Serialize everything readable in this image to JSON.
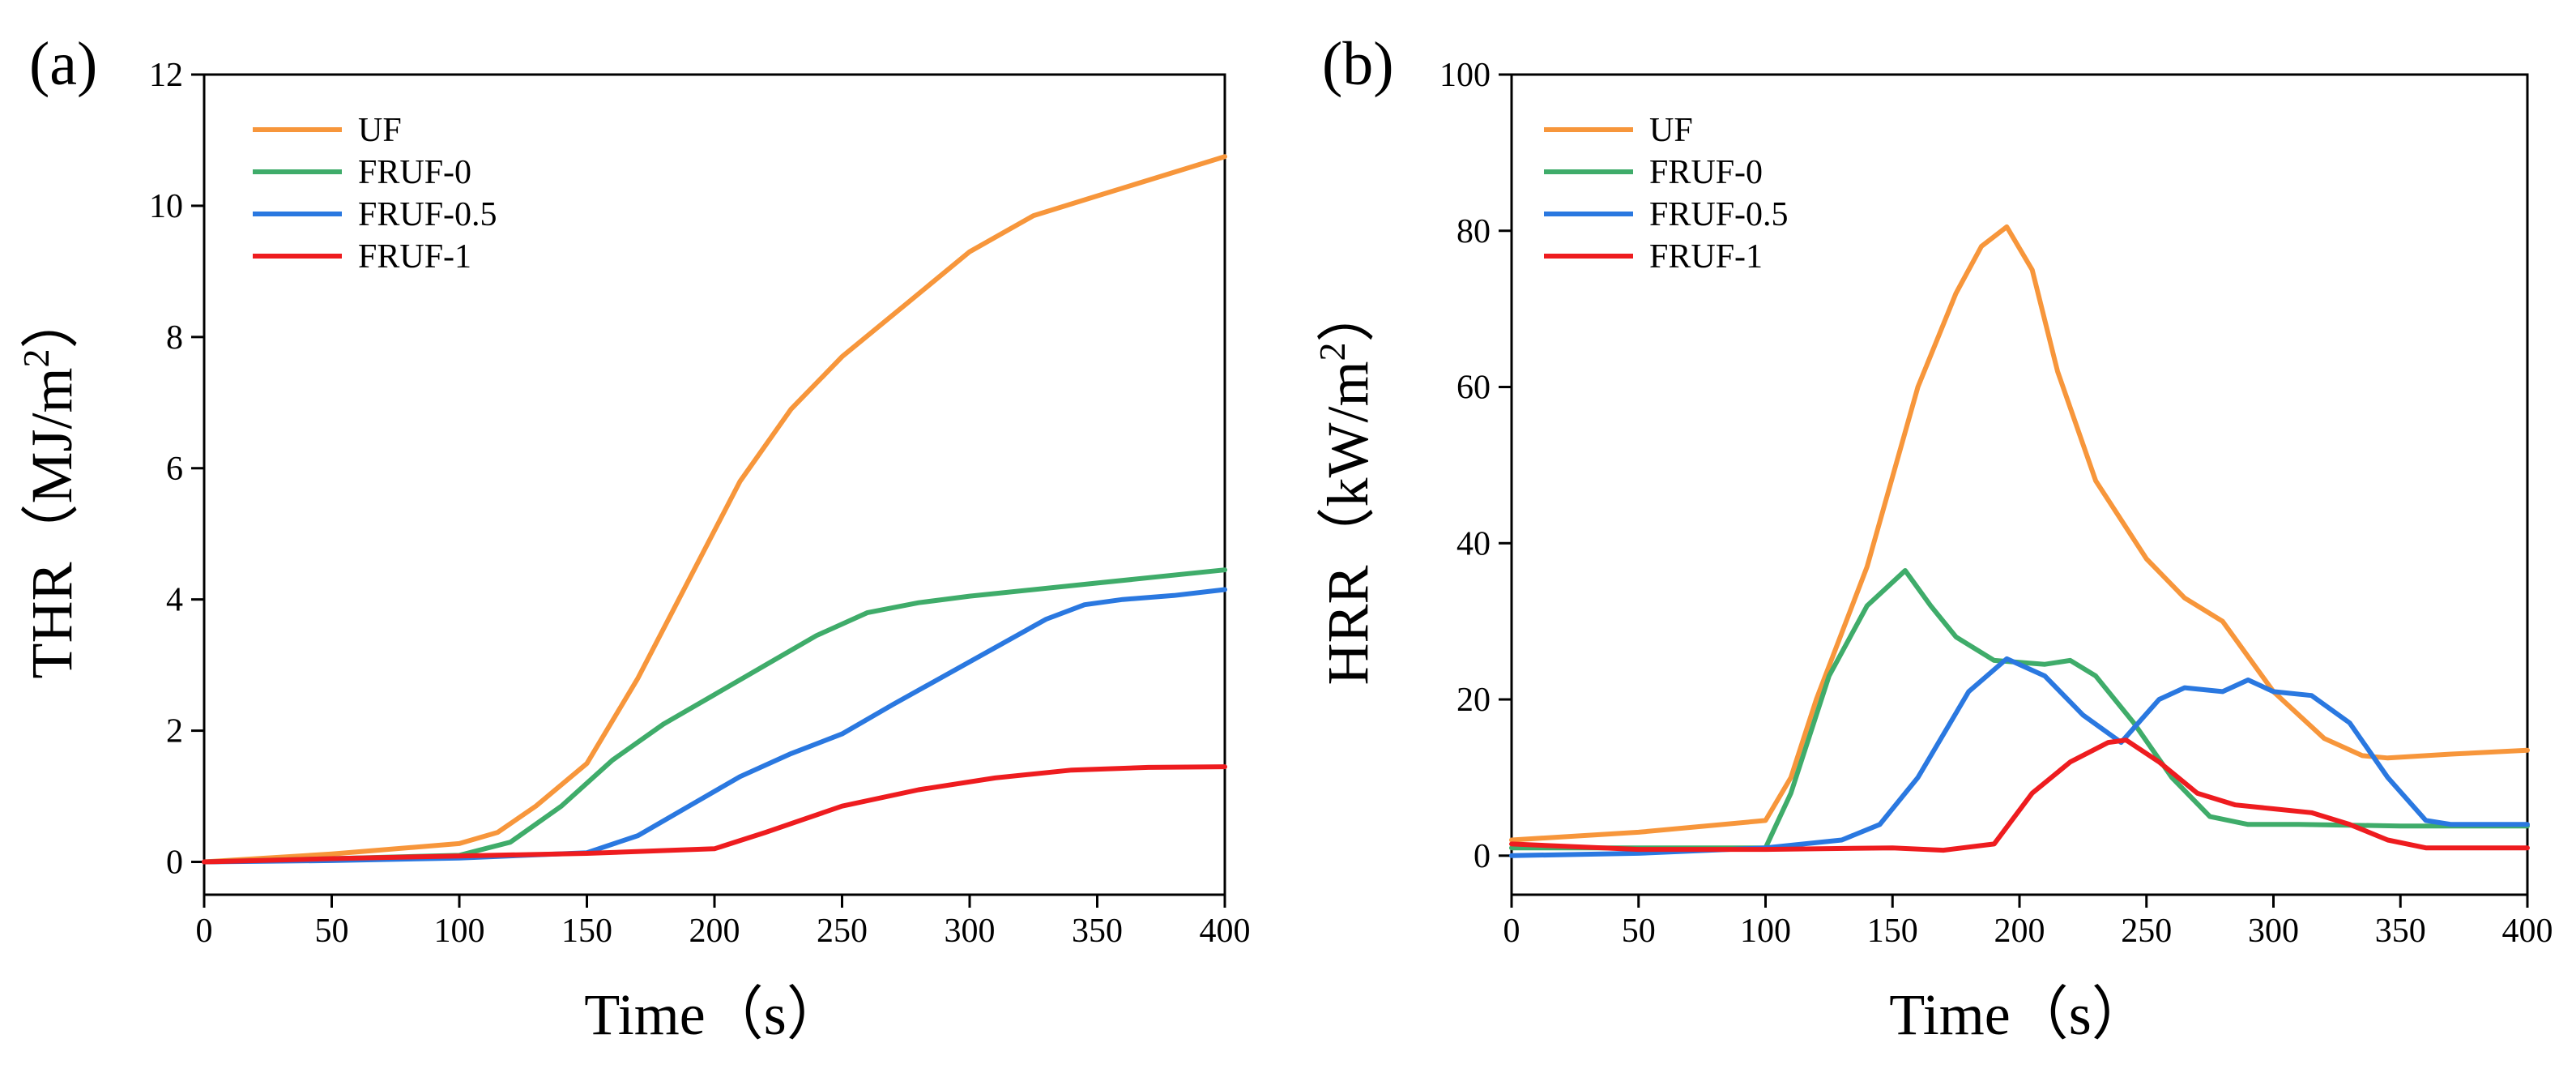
{
  "chart_data": [
    {
      "type": "line",
      "panel_label": "(a)",
      "title": "",
      "xlabel": "Time（s）",
      "ylabel": "THR（MJ/m",
      "ylabel_sup": "2",
      "ylabel_tail": "）",
      "xlim": [
        0,
        400
      ],
      "ylim": [
        -0.5,
        12
      ],
      "xticks": [
        "0",
        "50",
        "100",
        "150",
        "200",
        "250",
        "300",
        "350",
        "400"
      ],
      "yticks": [
        "0",
        "2",
        "4",
        "6",
        "8",
        "10",
        "12"
      ],
      "legend_position": "top-left",
      "series": [
        {
          "name": "UF",
          "color": "#f7963b",
          "x": [
            0,
            50,
            100,
            115,
            130,
            150,
            170,
            190,
            210,
            230,
            250,
            275,
            300,
            325,
            350,
            375,
            400
          ],
          "y": [
            0,
            0.12,
            0.28,
            0.45,
            0.85,
            1.5,
            2.8,
            4.3,
            5.8,
            6.9,
            7.7,
            8.5,
            9.3,
            9.85,
            10.15,
            10.45,
            10.75
          ]
        },
        {
          "name": "FRUF-0",
          "color": "#3fac6a",
          "x": [
            0,
            50,
            100,
            120,
            140,
            160,
            180,
            200,
            220,
            240,
            260,
            280,
            300,
            350,
            400
          ],
          "y": [
            0,
            0.05,
            0.1,
            0.3,
            0.85,
            1.55,
            2.1,
            2.55,
            3.0,
            3.45,
            3.8,
            3.95,
            4.05,
            4.25,
            4.45
          ]
        },
        {
          "name": "FRUF-0.5",
          "color": "#2a78e0",
          "x": [
            0,
            50,
            100,
            150,
            170,
            190,
            210,
            230,
            250,
            270,
            300,
            330,
            345,
            360,
            380,
            400
          ],
          "y": [
            0,
            0.02,
            0.06,
            0.14,
            0.4,
            0.85,
            1.3,
            1.65,
            1.95,
            2.4,
            3.05,
            3.7,
            3.92,
            4.0,
            4.06,
            4.15
          ]
        },
        {
          "name": "FRUF-1",
          "color": "#ee1c1f",
          "x": [
            0,
            50,
            100,
            150,
            200,
            220,
            250,
            280,
            310,
            340,
            370,
            400
          ],
          "y": [
            0,
            0.05,
            0.09,
            0.13,
            0.2,
            0.45,
            0.85,
            1.1,
            1.28,
            1.4,
            1.44,
            1.45
          ]
        }
      ]
    },
    {
      "type": "line",
      "panel_label": "(b)",
      "title": "",
      "xlabel": "Time（s）",
      "ylabel": "HRR（kW/m",
      "ylabel_sup": "2",
      "ylabel_tail": "）",
      "xlim": [
        0,
        400
      ],
      "ylim": [
        -5,
        100
      ],
      "xticks": [
        "0",
        "50",
        "100",
        "150",
        "200",
        "250",
        "300",
        "350",
        "400"
      ],
      "yticks": [
        "0",
        "20",
        "40",
        "60",
        "80",
        "100"
      ],
      "legend_position": "top-left",
      "series": [
        {
          "name": "UF",
          "color": "#f7963b",
          "x": [
            0,
            50,
            100,
            110,
            120,
            140,
            160,
            175,
            185,
            195,
            205,
            215,
            230,
            250,
            265,
            280,
            300,
            320,
            335,
            345,
            370,
            400
          ],
          "y": [
            2,
            3,
            4.5,
            10,
            20,
            37,
            60,
            72,
            78,
            80.5,
            75,
            62,
            48,
            38,
            33,
            30,
            21,
            15,
            12.8,
            12.5,
            13,
            13.5
          ]
        },
        {
          "name": "FRUF-0",
          "color": "#3fac6a",
          "x": [
            0,
            50,
            100,
            110,
            125,
            140,
            155,
            165,
            175,
            190,
            210,
            220,
            230,
            245,
            260,
            275,
            290,
            310,
            350,
            400
          ],
          "y": [
            1,
            1,
            1,
            8,
            23,
            32,
            36.5,
            32,
            28,
            25,
            24.5,
            25,
            23,
            17,
            10,
            5,
            4,
            4,
            3.8,
            3.8
          ]
        },
        {
          "name": "FRUF-0.5",
          "color": "#2a78e0",
          "x": [
            0,
            50,
            100,
            130,
            145,
            160,
            180,
            195,
            210,
            225,
            240,
            255,
            265,
            280,
            290,
            300,
            315,
            330,
            345,
            360,
            370,
            400
          ],
          "y": [
            0,
            0.3,
            1,
            2,
            4,
            10,
            21,
            25.2,
            23,
            18,
            14.5,
            20,
            21.5,
            21,
            22.5,
            21,
            20.5,
            17,
            10,
            4.5,
            4,
            4
          ]
        },
        {
          "name": "FRUF-1",
          "color": "#ee1c1f",
          "x": [
            0,
            50,
            100,
            150,
            170,
            190,
            205,
            220,
            235,
            242,
            255,
            270,
            285,
            300,
            315,
            330,
            345,
            360,
            380,
            400
          ],
          "y": [
            1.5,
            0.8,
            0.8,
            1,
            0.7,
            1.5,
            8,
            12,
            14.5,
            14.8,
            12,
            8,
            6.5,
            6,
            5.5,
            4,
            2,
            1,
            1,
            1
          ]
        }
      ]
    }
  ]
}
